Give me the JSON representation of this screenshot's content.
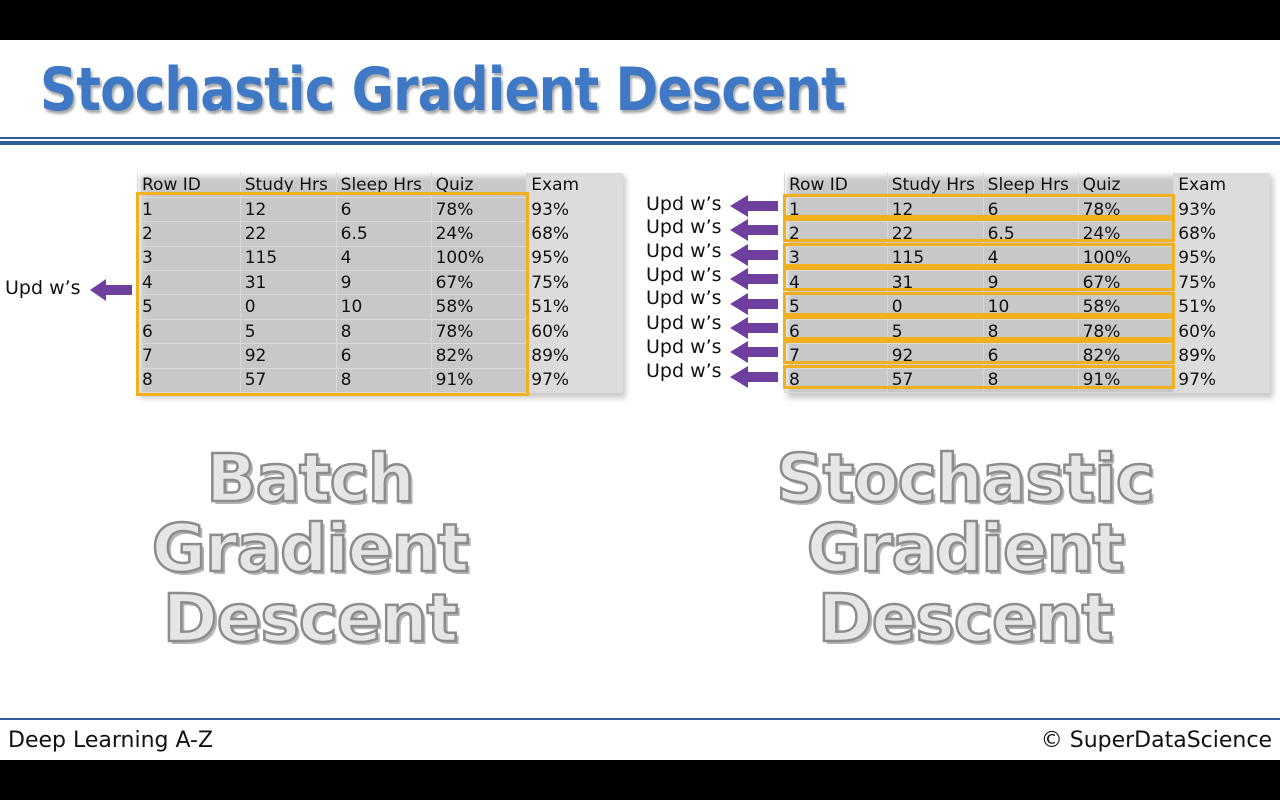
{
  "title": "Stochastic Gradient Descent",
  "table": {
    "headers": [
      "Row ID",
      "Study Hrs",
      "Sleep Hrs",
      "Quiz",
      "Exam"
    ],
    "rows": [
      [
        "1",
        "12",
        "6",
        "78%",
        "93%"
      ],
      [
        "2",
        "22",
        "6.5",
        "24%",
        "68%"
      ],
      [
        "3",
        "115",
        "4",
        "100%",
        "95%"
      ],
      [
        "4",
        "31",
        "9",
        "67%",
        "75%"
      ],
      [
        "5",
        "0",
        "10",
        "58%",
        "51%"
      ],
      [
        "6",
        "5",
        "8",
        "78%",
        "60%"
      ],
      [
        "7",
        "92",
        "6",
        "82%",
        "89%"
      ],
      [
        "8",
        "57",
        "8",
        "91%",
        "97%"
      ]
    ]
  },
  "update_label": "Upd w’s",
  "batch_label": [
    "Batch",
    "Gradient",
    "Descent"
  ],
  "stochastic_label": [
    "Stochastic",
    "Gradient",
    "Descent"
  ],
  "footer": {
    "course": "Deep Learning A-Z",
    "copyright": "© SuperDataScience"
  },
  "colors": {
    "title": "#3f78c4",
    "highlight": "#f2b01e",
    "arrow": "#6f3fa0",
    "rule": "#2e5d9a"
  }
}
